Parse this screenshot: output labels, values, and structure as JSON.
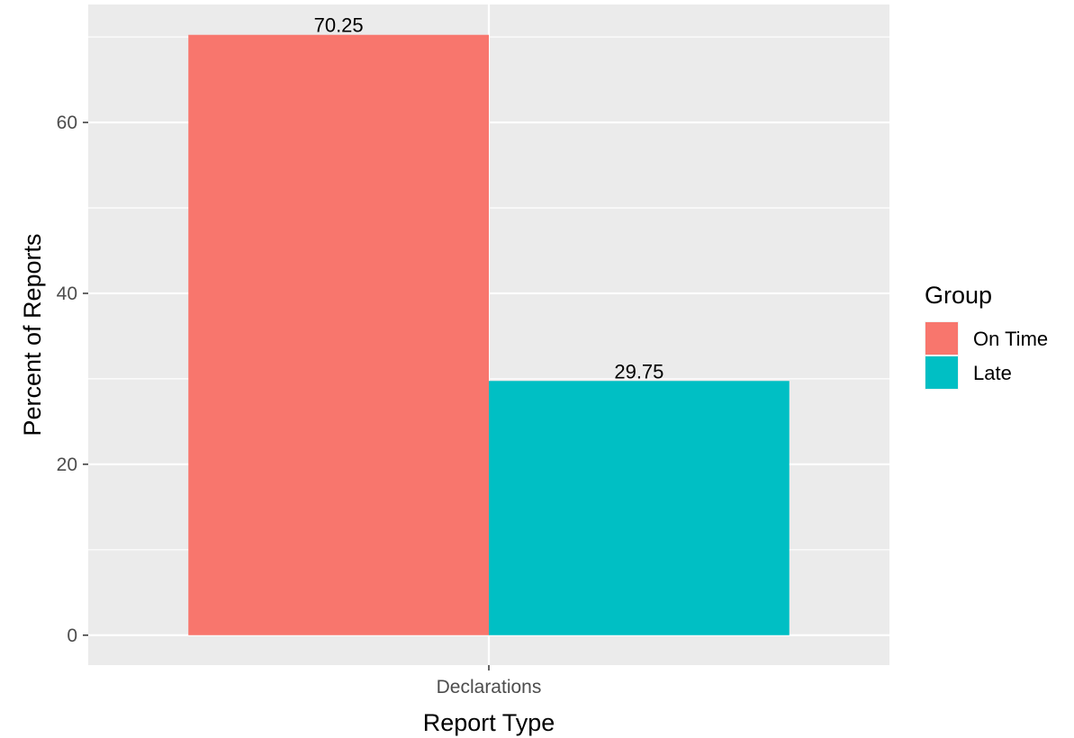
{
  "chart_data": {
    "type": "bar",
    "categories": [
      "Declarations"
    ],
    "series": [
      {
        "name": "On Time",
        "values": [
          70.25
        ],
        "color": "#F8766D"
      },
      {
        "name": "Late",
        "values": [
          29.75
        ],
        "color": "#00BFC4"
      }
    ],
    "data_labels": [
      "70.25",
      "29.75"
    ],
    "title": "",
    "xlabel": "Report Type",
    "ylabel": "Percent of Reports",
    "ylim": [
      -3.5,
      73.8
    ],
    "yticks": [
      0,
      20,
      40,
      60
    ],
    "ytick_labels": [
      "0",
      "20",
      "40",
      "60"
    ],
    "grid": true,
    "panel_background": "#EBEBEB",
    "legend": {
      "title": "Group",
      "placement": "right",
      "items": [
        "On Time",
        "Late"
      ]
    }
  }
}
